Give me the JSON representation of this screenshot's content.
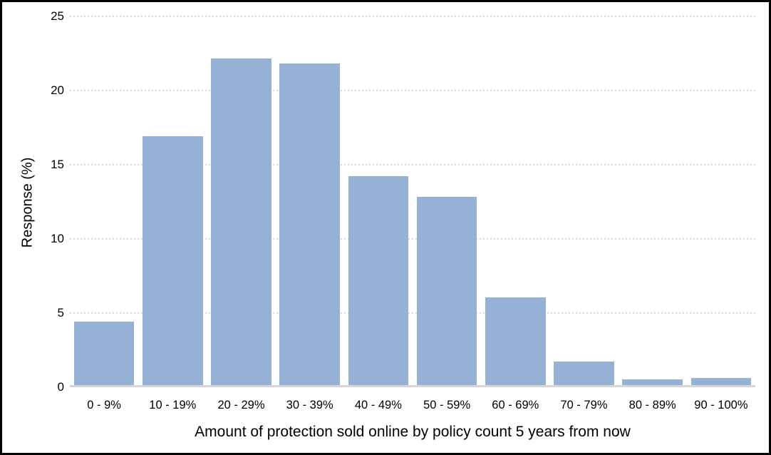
{
  "chart_data": {
    "type": "bar",
    "title": "",
    "categories": [
      "0 - 9%",
      "10 - 19%",
      "20 - 29%",
      "30 - 39%",
      "40 - 49%",
      "50 - 59%",
      "60 - 69%",
      "70 - 79%",
      "80 - 89%",
      "90 - 100%"
    ],
    "values": [
      4.3,
      16.8,
      22.0,
      21.7,
      14.1,
      12.7,
      5.9,
      1.6,
      0.4,
      0.5
    ],
    "xlabel": "Amount of protection sold online by policy count 5 years from now",
    "ylabel": "Response (%)",
    "ylim": [
      0,
      25
    ],
    "yticks": [
      0,
      5,
      10,
      15,
      20,
      25
    ],
    "grid": "horizontal-dotted",
    "legend": "none",
    "colors": {
      "bar": "#95b2d6",
      "gridline": "#dadada",
      "axis_line": "#d6d6d6",
      "text": "#000000",
      "frame_border": "#000000",
      "background": "#ffffff"
    }
  }
}
